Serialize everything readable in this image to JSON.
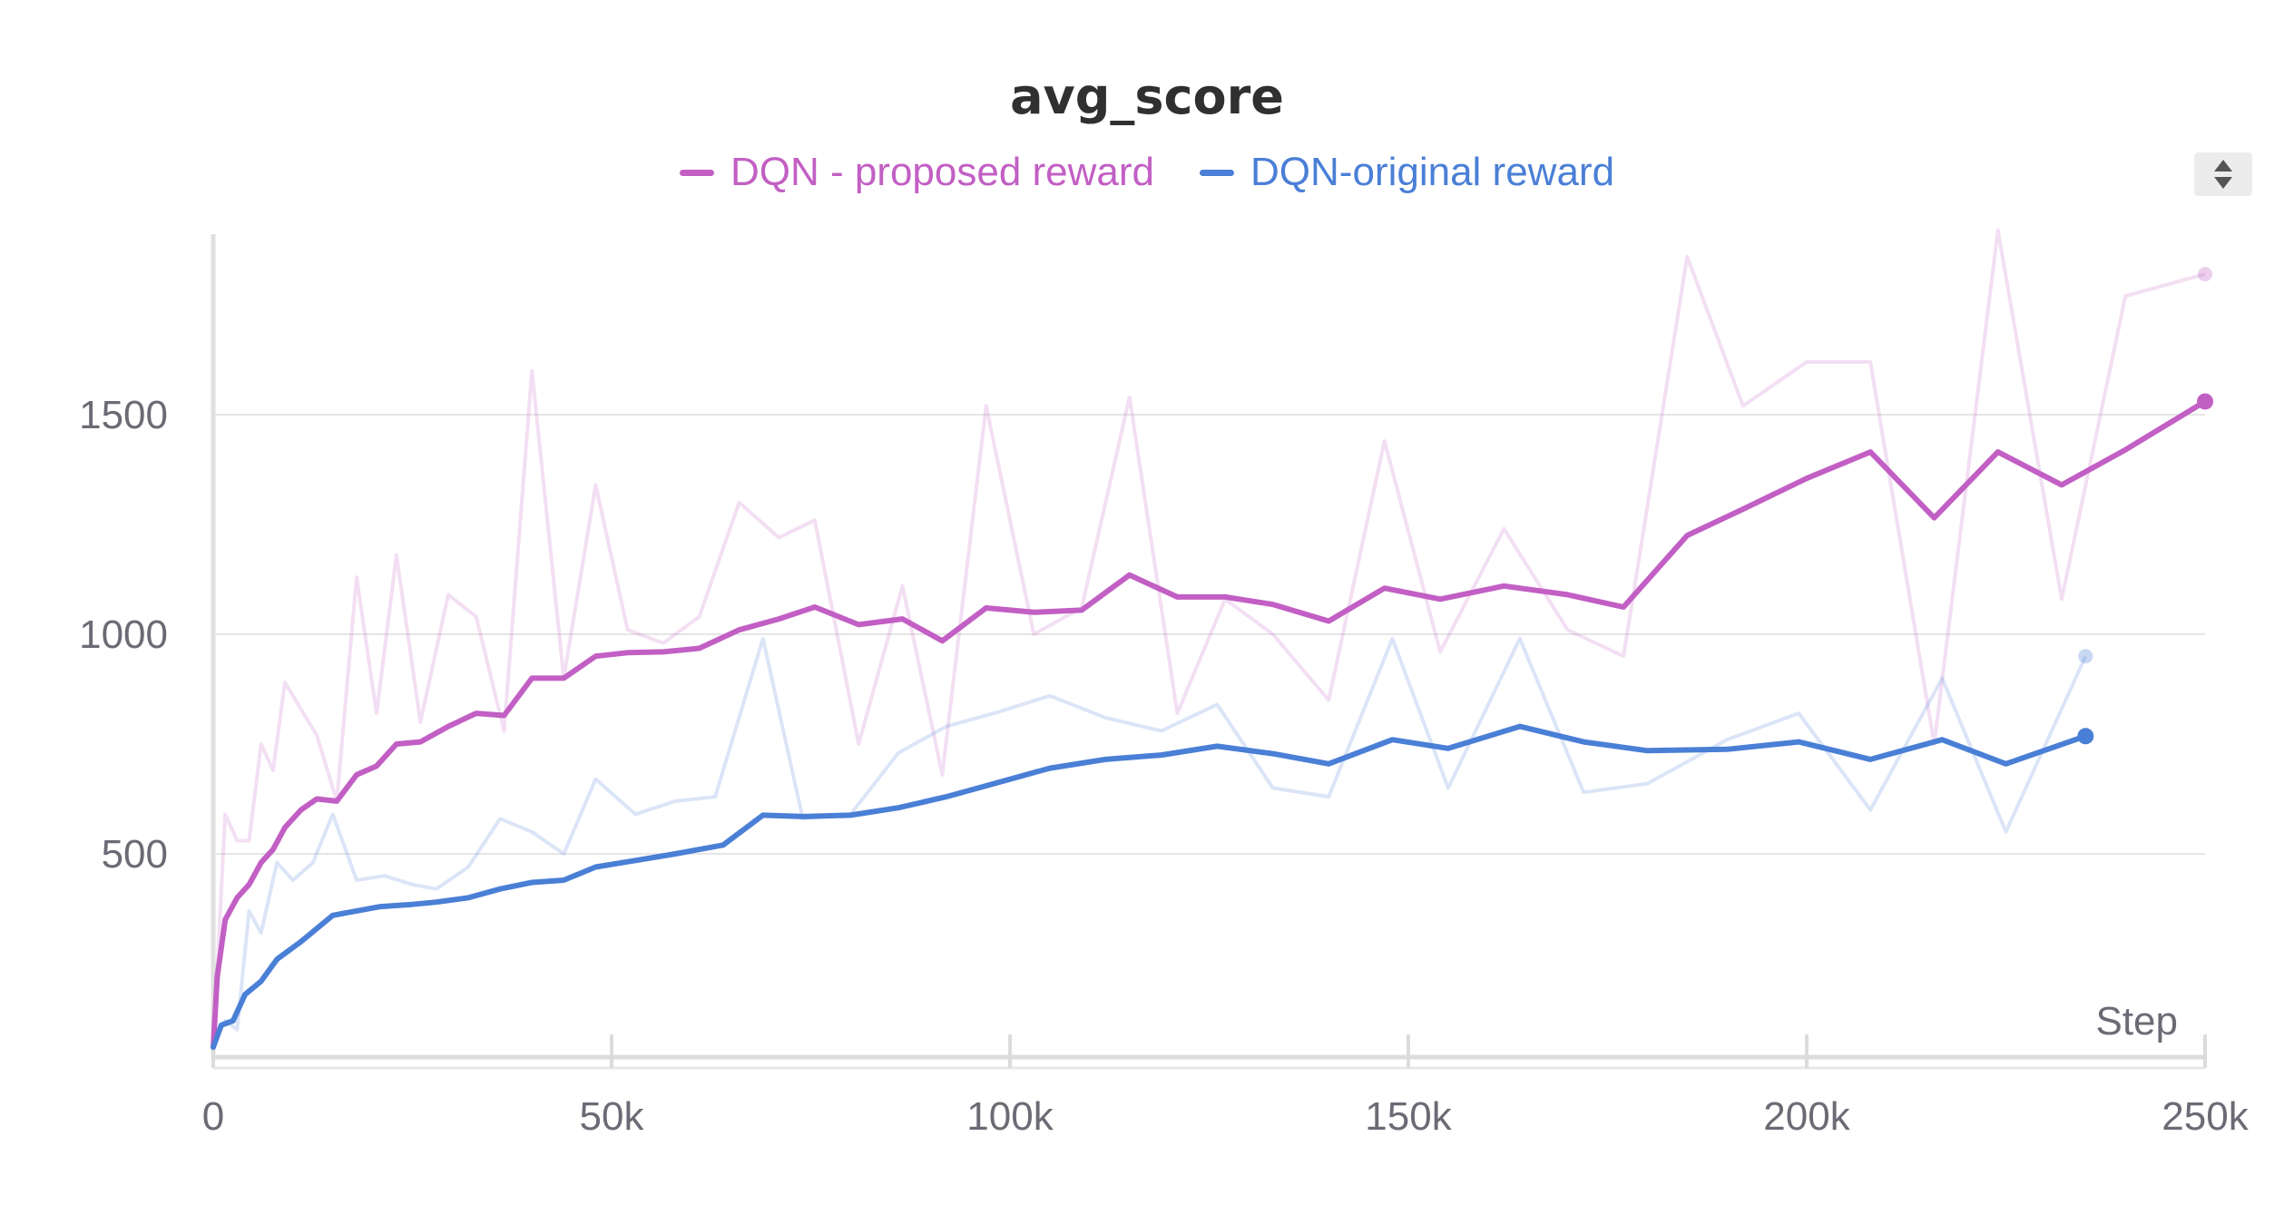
{
  "chart_data": {
    "type": "line",
    "title": "avg_score",
    "xlabel": "Step",
    "ylabel": "",
    "xlim": [
      0,
      250000
    ],
    "ylim": [
      0,
      2000
    ],
    "xticks": [
      0,
      50000,
      100000,
      150000,
      200000,
      250000
    ],
    "xtick_labels": [
      "0",
      "50k",
      "100k",
      "150k",
      "200k",
      "250k"
    ],
    "yticks": [
      500,
      1000,
      1500
    ],
    "ytick_labels": [
      "500",
      "1000",
      "1500"
    ],
    "grid": true,
    "legend_position": "top",
    "series": [
      {
        "name": "DQN - proposed reward",
        "color": "#c25fc4",
        "raw_values": [
          [
            0,
            60
          ],
          [
            1500,
            590
          ],
          [
            3000,
            530
          ],
          [
            4500,
            530
          ],
          [
            6000,
            750
          ],
          [
            7500,
            690
          ],
          [
            9000,
            890
          ],
          [
            13000,
            770
          ],
          [
            15500,
            620
          ],
          [
            18000,
            1130
          ],
          [
            20500,
            820
          ],
          [
            23000,
            1180
          ],
          [
            26000,
            800
          ],
          [
            29500,
            1090
          ],
          [
            33000,
            1040
          ],
          [
            36500,
            780
          ],
          [
            40000,
            1600
          ],
          [
            44000,
            900
          ],
          [
            48000,
            1340
          ],
          [
            52000,
            1010
          ],
          [
            56500,
            980
          ],
          [
            61000,
            1040
          ],
          [
            66000,
            1300
          ],
          [
            71000,
            1220
          ],
          [
            75500,
            1260
          ],
          [
            81000,
            750
          ],
          [
            86500,
            1110
          ],
          [
            91500,
            680
          ],
          [
            97000,
            1520
          ],
          [
            103000,
            1000
          ],
          [
            109000,
            1060
          ],
          [
            115000,
            1540
          ],
          [
            121000,
            820
          ],
          [
            127000,
            1080
          ],
          [
            133000,
            1000
          ],
          [
            140000,
            850
          ],
          [
            147000,
            1440
          ],
          [
            154000,
            960
          ],
          [
            162000,
            1240
          ],
          [
            170000,
            1010
          ],
          [
            177000,
            950
          ],
          [
            185000,
            1860
          ],
          [
            192000,
            1520
          ],
          [
            200000,
            1620
          ],
          [
            208000,
            1620
          ],
          [
            216000,
            750
          ],
          [
            224000,
            1920
          ],
          [
            232000,
            1080
          ],
          [
            240000,
            1770
          ],
          [
            250000,
            1820
          ]
        ],
        "smoothed_values": [
          [
            0,
            60
          ],
          [
            500,
            220
          ],
          [
            1500,
            350
          ],
          [
            3000,
            400
          ],
          [
            4500,
            430
          ],
          [
            6000,
            480
          ],
          [
            7500,
            510
          ],
          [
            9000,
            560
          ],
          [
            11000,
            600
          ],
          [
            13000,
            625
          ],
          [
            15500,
            620
          ],
          [
            18000,
            680
          ],
          [
            20500,
            700
          ],
          [
            23000,
            750
          ],
          [
            26000,
            755
          ],
          [
            29500,
            790
          ],
          [
            33000,
            820
          ],
          [
            36500,
            815
          ],
          [
            40000,
            900
          ],
          [
            44000,
            900
          ],
          [
            48000,
            950
          ],
          [
            52000,
            958
          ],
          [
            56500,
            960
          ],
          [
            61000,
            968
          ],
          [
            66000,
            1010
          ],
          [
            71000,
            1035
          ],
          [
            75500,
            1062
          ],
          [
            81000,
            1022
          ],
          [
            86500,
            1035
          ],
          [
            91500,
            985
          ],
          [
            97000,
            1060
          ],
          [
            103000,
            1050
          ],
          [
            109000,
            1055
          ],
          [
            115000,
            1135
          ],
          [
            121000,
            1085
          ],
          [
            127000,
            1085
          ],
          [
            133000,
            1068
          ],
          [
            140000,
            1030
          ],
          [
            147000,
            1105
          ],
          [
            154000,
            1080
          ],
          [
            162000,
            1110
          ],
          [
            170000,
            1090
          ],
          [
            177000,
            1062
          ],
          [
            185000,
            1225
          ],
          [
            192000,
            1285
          ],
          [
            200000,
            1355
          ],
          [
            208000,
            1415
          ],
          [
            216000,
            1265
          ],
          [
            224000,
            1415
          ],
          [
            232000,
            1340
          ],
          [
            240000,
            1420
          ],
          [
            250000,
            1530
          ]
        ]
      },
      {
        "name": "DQN-original reward",
        "color": "#4a7fd6",
        "raw_values": [
          [
            0,
            60
          ],
          [
            1500,
            120
          ],
          [
            3000,
            100
          ],
          [
            4500,
            370
          ],
          [
            6000,
            320
          ],
          [
            8000,
            480
          ],
          [
            10000,
            440
          ],
          [
            12500,
            480
          ],
          [
            15000,
            590
          ],
          [
            18000,
            440
          ],
          [
            21500,
            450
          ],
          [
            25000,
            430
          ],
          [
            28000,
            420
          ],
          [
            32000,
            470
          ],
          [
            36000,
            580
          ],
          [
            40000,
            550
          ],
          [
            44000,
            500
          ],
          [
            48000,
            670
          ],
          [
            53000,
            590
          ],
          [
            58000,
            620
          ],
          [
            63000,
            630
          ],
          [
            69000,
            990
          ],
          [
            74000,
            580
          ],
          [
            80000,
            590
          ],
          [
            86000,
            730
          ],
          [
            92000,
            790
          ],
          [
            98000,
            820
          ],
          [
            105000,
            860
          ],
          [
            112000,
            810
          ],
          [
            119000,
            780
          ],
          [
            126000,
            840
          ],
          [
            133000,
            650
          ],
          [
            140000,
            630
          ],
          [
            148000,
            990
          ],
          [
            155000,
            650
          ],
          [
            164000,
            990
          ],
          [
            172000,
            640
          ],
          [
            180000,
            660
          ],
          [
            190000,
            760
          ],
          [
            199000,
            820
          ],
          [
            208000,
            600
          ],
          [
            217000,
            900
          ],
          [
            225000,
            550
          ],
          [
            235000,
            950
          ]
        ],
        "smoothed_values": [
          [
            0,
            60
          ],
          [
            1000,
            110
          ],
          [
            2500,
            120
          ],
          [
            4000,
            180
          ],
          [
            6000,
            210
          ],
          [
            8000,
            260
          ],
          [
            11000,
            300
          ],
          [
            15000,
            360
          ],
          [
            18000,
            370
          ],
          [
            21000,
            380
          ],
          [
            25000,
            385
          ],
          [
            28000,
            390
          ],
          [
            32000,
            400
          ],
          [
            36000,
            420
          ],
          [
            40000,
            435
          ],
          [
            44000,
            440
          ],
          [
            48000,
            470
          ],
          [
            53000,
            485
          ],
          [
            58000,
            500
          ],
          [
            64000,
            520
          ],
          [
            69000,
            588
          ],
          [
            74000,
            585
          ],
          [
            80000,
            588
          ],
          [
            86000,
            605
          ],
          [
            92000,
            630
          ],
          [
            98000,
            660
          ],
          [
            105000,
            695
          ],
          [
            112000,
            715
          ],
          [
            119000,
            725
          ],
          [
            126000,
            745
          ],
          [
            133000,
            728
          ],
          [
            140000,
            705
          ],
          [
            148000,
            760
          ],
          [
            155000,
            740
          ],
          [
            164000,
            790
          ],
          [
            172000,
            755
          ],
          [
            180000,
            735
          ],
          [
            190000,
            738
          ],
          [
            199000,
            755
          ],
          [
            208000,
            715
          ],
          [
            217000,
            760
          ],
          [
            225000,
            705
          ],
          [
            235000,
            768
          ]
        ]
      }
    ]
  },
  "scroll_widget": {
    "icon": "sort-arrows-icon"
  }
}
